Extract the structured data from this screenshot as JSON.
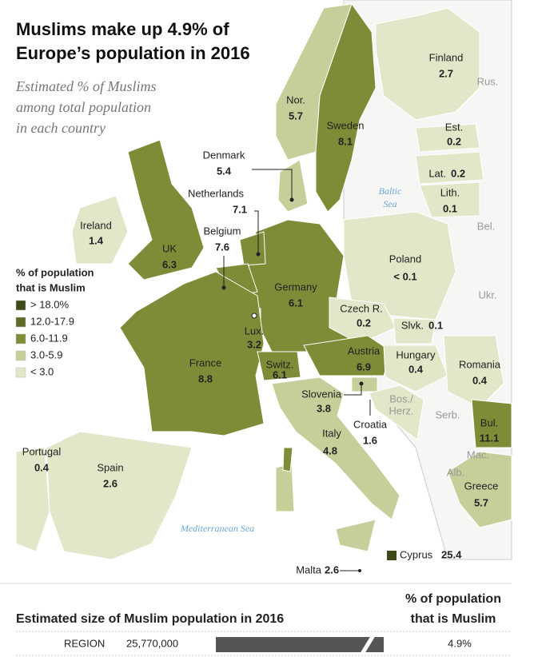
{
  "title": [
    "Muslims make up 4.9% of",
    "Europe’s population in 2016"
  ],
  "subtitle": [
    "Estimated % of Muslims",
    "among total population",
    "in each country"
  ],
  "legend": {
    "title": [
      "% of population",
      "that is Muslim"
    ],
    "items": [
      {
        "label": "> 18.0%",
        "color": "#3f4a1b"
      },
      {
        "label": "12.0-17.9",
        "color": "#5f6b27"
      },
      {
        "label": "6.0-11.9",
        "color": "#7f8b37"
      },
      {
        "label": "3.0-5.9",
        "color": "#c8ce9a"
      },
      {
        "label": "< 3.0",
        "color": "#e3e6c8"
      }
    ]
  },
  "countries": [
    {
      "name": "Finland",
      "value": 2.7
    },
    {
      "name": "Nor.",
      "value": 5.7
    },
    {
      "name": "Sweden",
      "value": 8.1
    },
    {
      "name": "Est.",
      "value": 0.2
    },
    {
      "name": "Lat.",
      "value": 0.2
    },
    {
      "name": "Lith.",
      "value": 0.1
    },
    {
      "name": "Denmark",
      "value": 5.4
    },
    {
      "name": "Netherlands",
      "value": 7.1
    },
    {
      "name": "Ireland",
      "value": 1.4
    },
    {
      "name": "Belgium",
      "value": 7.6
    },
    {
      "name": "UK",
      "value": 6.3
    },
    {
      "name": "Poland",
      "value": "< 0.1"
    },
    {
      "name": "Germany",
      "value": 6.1
    },
    {
      "name": "Czech R.",
      "value": 0.2
    },
    {
      "name": "Slvk.",
      "value": 0.1
    },
    {
      "name": "Lux.",
      "value": 3.2
    },
    {
      "name": "Hungary",
      "value": 0.4
    },
    {
      "name": "Austria",
      "value": 6.9
    },
    {
      "name": "Romania",
      "value": 0.4
    },
    {
      "name": "France",
      "value": 8.8
    },
    {
      "name": "Switz.",
      "value": 6.1
    },
    {
      "name": "Slovenia",
      "value": 3.8
    },
    {
      "name": "Croatia",
      "value": 1.6
    },
    {
      "name": "Bul.",
      "value": 11.1
    },
    {
      "name": "Italy",
      "value": 4.8
    },
    {
      "name": "Portugal",
      "value": 0.4
    },
    {
      "name": "Spain",
      "value": 2.6
    },
    {
      "name": "Greece",
      "value": 5.7
    },
    {
      "name": "Cyprus",
      "value": 25.4
    },
    {
      "name": "Malta",
      "value": 2.6
    }
  ],
  "other_labels": [
    "Rus.",
    "Bel.",
    "Ukr.",
    "Serb.",
    "Bos./",
    "Herz.",
    "Mac.",
    "Alb."
  ],
  "seas": [
    "Baltic",
    "Sea",
    "Mediterranean Sea"
  ],
  "summary": {
    "title": "Estimated size of Muslim population in 2016",
    "column_header": [
      "% of population",
      "that is Muslim"
    ],
    "row": {
      "label": "REGION",
      "population": "25,770,000",
      "percent": "4.9%"
    }
  }
}
